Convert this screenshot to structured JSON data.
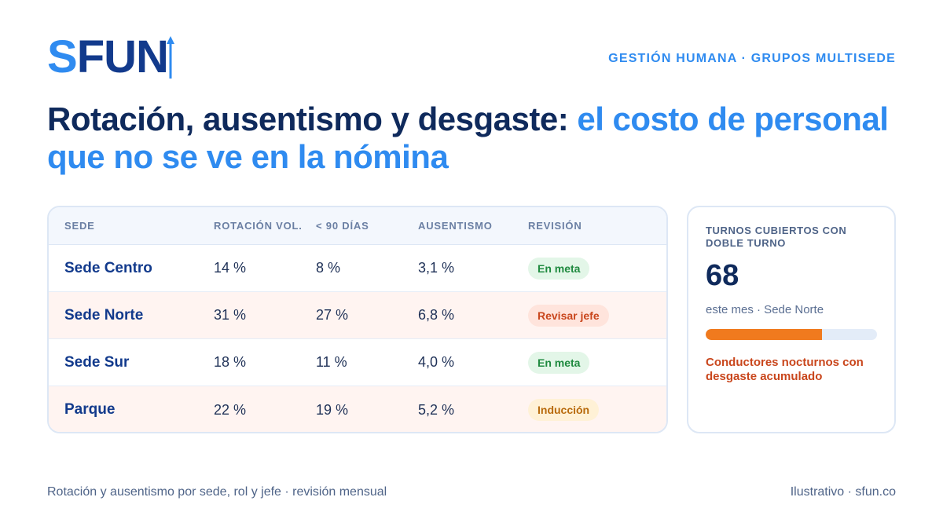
{
  "brand": {
    "logo_s": "S",
    "logo_fun": "FUN",
    "tagline": "GESTIÓN HUMANA · GRUPOS MULTISEDE",
    "colors": {
      "primary": "#123a8c",
      "accent": "#2f8bf0",
      "warning": "#f07a1e"
    }
  },
  "headline": {
    "part1": "Rotación, ausentismo y desgaste: ",
    "part2": "el costo de personal que no se ve en la nómina"
  },
  "table": {
    "headers": [
      "SEDE",
      "ROTACIÓN VOL.",
      "< 90 DÍAS",
      "AUSENTISMO",
      "REVISIÓN"
    ],
    "rows": [
      {
        "sede": "Sede Centro",
        "rotacion": "14 %",
        "menos90": "8 %",
        "ausentismo": "3,1 %",
        "revision": "En meta",
        "status": "green"
      },
      {
        "sede": "Sede Norte",
        "rotacion": "31 %",
        "menos90": "27 %",
        "ausentismo": "6,8 %",
        "revision": "Revisar jefe",
        "status": "red"
      },
      {
        "sede": "Sede Sur",
        "rotacion": "18 %",
        "menos90": "11 %",
        "ausentismo": "4,0 %",
        "revision": "En meta",
        "status": "green"
      },
      {
        "sede": "Parque",
        "rotacion": "22 %",
        "menos90": "19 %",
        "ausentismo": "5,2 %",
        "revision": "Inducción",
        "status": "amber"
      }
    ]
  },
  "side": {
    "title": "TURNOS CUBIERTOS CON DOBLE TURNO",
    "value": "68",
    "subtitle": "este mes · Sede Norte",
    "bar_fraction": 0.68,
    "note": "Conductores nocturnos con desgaste acumulado"
  },
  "footer": {
    "left": "Rotación y ausentismo por sede, rol y jefe · revisión mensual",
    "right": "Ilustrativo · sfun.co"
  }
}
